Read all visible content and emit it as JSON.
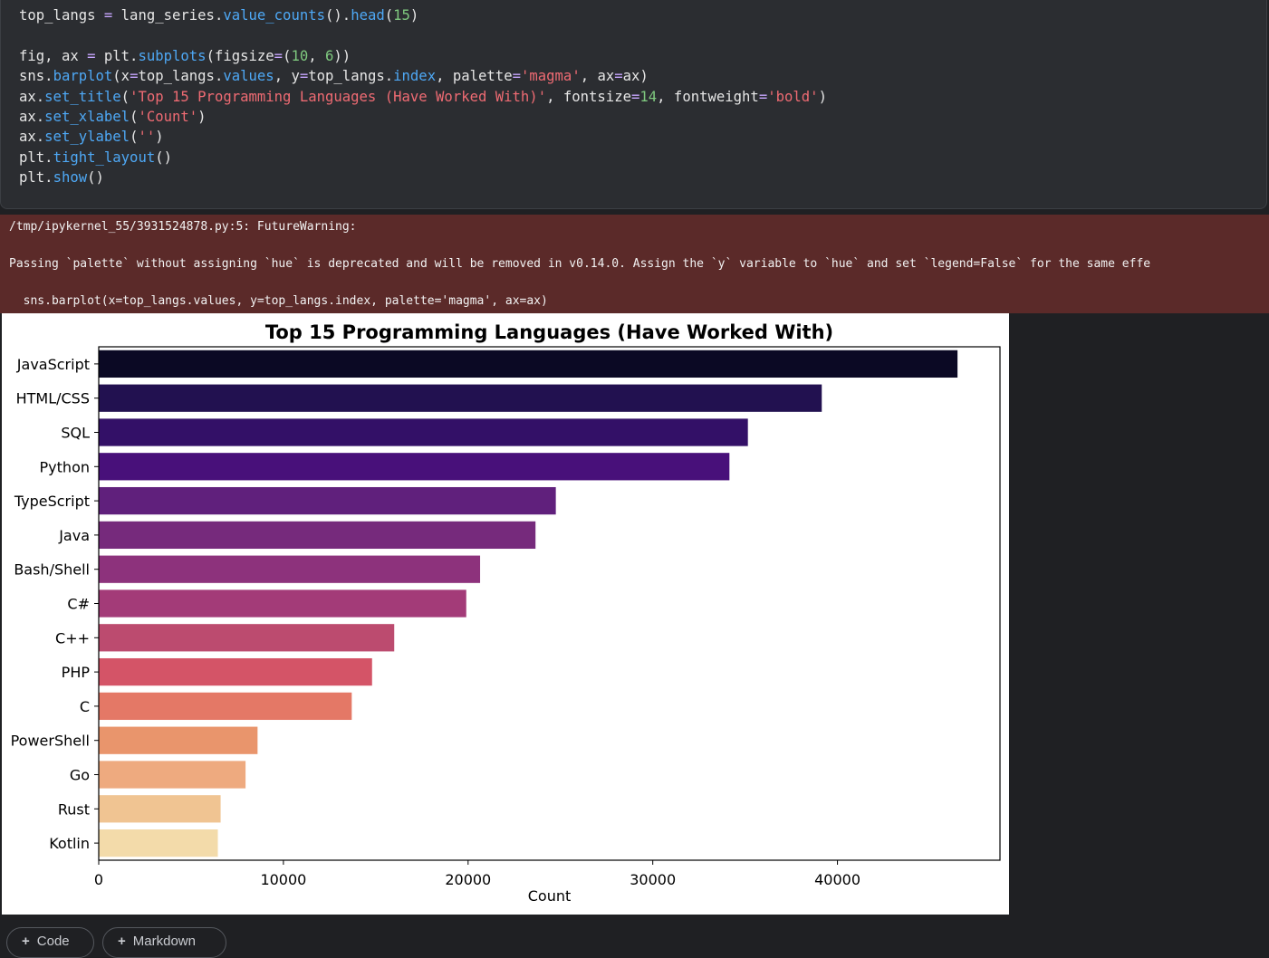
{
  "code_cell": {
    "lines": [
      [
        [
          "top_langs ",
          "t-text"
        ],
        [
          "= ",
          "t-op"
        ],
        [
          "lang_series.",
          "t-text"
        ],
        [
          "value_counts",
          "t-func"
        ],
        [
          "().",
          "t-text"
        ],
        [
          "head",
          "t-func"
        ],
        [
          "(",
          "t-text"
        ],
        [
          "15",
          "t-num"
        ],
        [
          ")",
          "t-text"
        ]
      ],
      [],
      [
        [
          "fig, ax ",
          "t-text"
        ],
        [
          "= ",
          "t-op"
        ],
        [
          "plt.",
          "t-text"
        ],
        [
          "subplots",
          "t-func"
        ],
        [
          "(figsize",
          "t-text"
        ],
        [
          "=",
          "t-op"
        ],
        [
          "(",
          "t-text"
        ],
        [
          "10",
          "t-num"
        ],
        [
          ", ",
          "t-text"
        ],
        [
          "6",
          "t-num"
        ],
        [
          "))",
          "t-text"
        ]
      ],
      [
        [
          "sns.",
          "t-text"
        ],
        [
          "barplot",
          "t-func"
        ],
        [
          "(x",
          "t-text"
        ],
        [
          "=",
          "t-op"
        ],
        [
          "top_langs.",
          "t-text"
        ],
        [
          "values",
          "t-func"
        ],
        [
          ", y",
          "t-text"
        ],
        [
          "=",
          "t-op"
        ],
        [
          "top_langs.",
          "t-text"
        ],
        [
          "index",
          "t-func"
        ],
        [
          ", palette",
          "t-text"
        ],
        [
          "=",
          "t-op"
        ],
        [
          "'magma'",
          "t-str"
        ],
        [
          ", ax",
          "t-text"
        ],
        [
          "=",
          "t-op"
        ],
        [
          "ax)",
          "t-text"
        ]
      ],
      [
        [
          "ax.",
          "t-text"
        ],
        [
          "set_title",
          "t-func"
        ],
        [
          "(",
          "t-text"
        ],
        [
          "'Top 15 Programming Languages (Have Worked With)'",
          "t-str"
        ],
        [
          ", fontsize",
          "t-text"
        ],
        [
          "=",
          "t-op"
        ],
        [
          "14",
          "t-num"
        ],
        [
          ", fontweight",
          "t-text"
        ],
        [
          "=",
          "t-op"
        ],
        [
          "'bold'",
          "t-str"
        ],
        [
          ")",
          "t-text"
        ]
      ],
      [
        [
          "ax.",
          "t-text"
        ],
        [
          "set_xlabel",
          "t-func"
        ],
        [
          "(",
          "t-text"
        ],
        [
          "'Count'",
          "t-str"
        ],
        [
          ")",
          "t-text"
        ]
      ],
      [
        [
          "ax.",
          "t-text"
        ],
        [
          "set_ylabel",
          "t-func"
        ],
        [
          "(",
          "t-text"
        ],
        [
          "''",
          "t-str"
        ],
        [
          ")",
          "t-text"
        ]
      ],
      [
        [
          "plt.",
          "t-text"
        ],
        [
          "tight_layout",
          "t-func"
        ],
        [
          "()",
          "t-text"
        ]
      ],
      [
        [
          "plt.",
          "t-text"
        ],
        [
          "show",
          "t-func"
        ],
        [
          "()",
          "t-text"
        ]
      ]
    ]
  },
  "warning": {
    "header": "/tmp/ipykernel_55/3931524878.py:5: FutureWarning:",
    "message": "Passing `palette` without assigning `hue` is deprecated and will be removed in v0.14.0. Assign the `y` variable to `hue` and set `legend=False` for the same effe",
    "code": "  sns.barplot(x=top_langs.values, y=top_langs.index, palette='magma', ax=ax)"
  },
  "chart_data": {
    "type": "bar",
    "orientation": "horizontal",
    "title": "Top 15 Programming Languages (Have Worked With)",
    "xlabel": "Count",
    "ylabel": "",
    "xlim": [
      0,
      48800
    ],
    "xticks": [
      0,
      10000,
      20000,
      30000,
      40000
    ],
    "grid": false,
    "palette": "magma",
    "categories": [
      "JavaScript",
      "HTML/CSS",
      "SQL",
      "Python",
      "TypeScript",
      "Java",
      "Bash/Shell",
      "C#",
      "C++",
      "PHP",
      "C",
      "PowerShell",
      "Go",
      "Rust",
      "Kotlin"
    ],
    "values": [
      46500,
      39150,
      35150,
      34150,
      24750,
      23650,
      20650,
      19900,
      16000,
      14800,
      13700,
      8600,
      7950,
      6600,
      6450
    ],
    "colors": [
      "#0b0924",
      "#221150",
      "#331067",
      "#48107a",
      "#60207c",
      "#762a7c",
      "#8d327c",
      "#a33b78",
      "#bc4b6f",
      "#d45467",
      "#e47866",
      "#e9956c",
      "#eeaa7f",
      "#f0c492",
      "#f3dbaa"
    ]
  },
  "toolbar": {
    "add_code_label": "Code",
    "add_markdown_label": "Markdown"
  }
}
